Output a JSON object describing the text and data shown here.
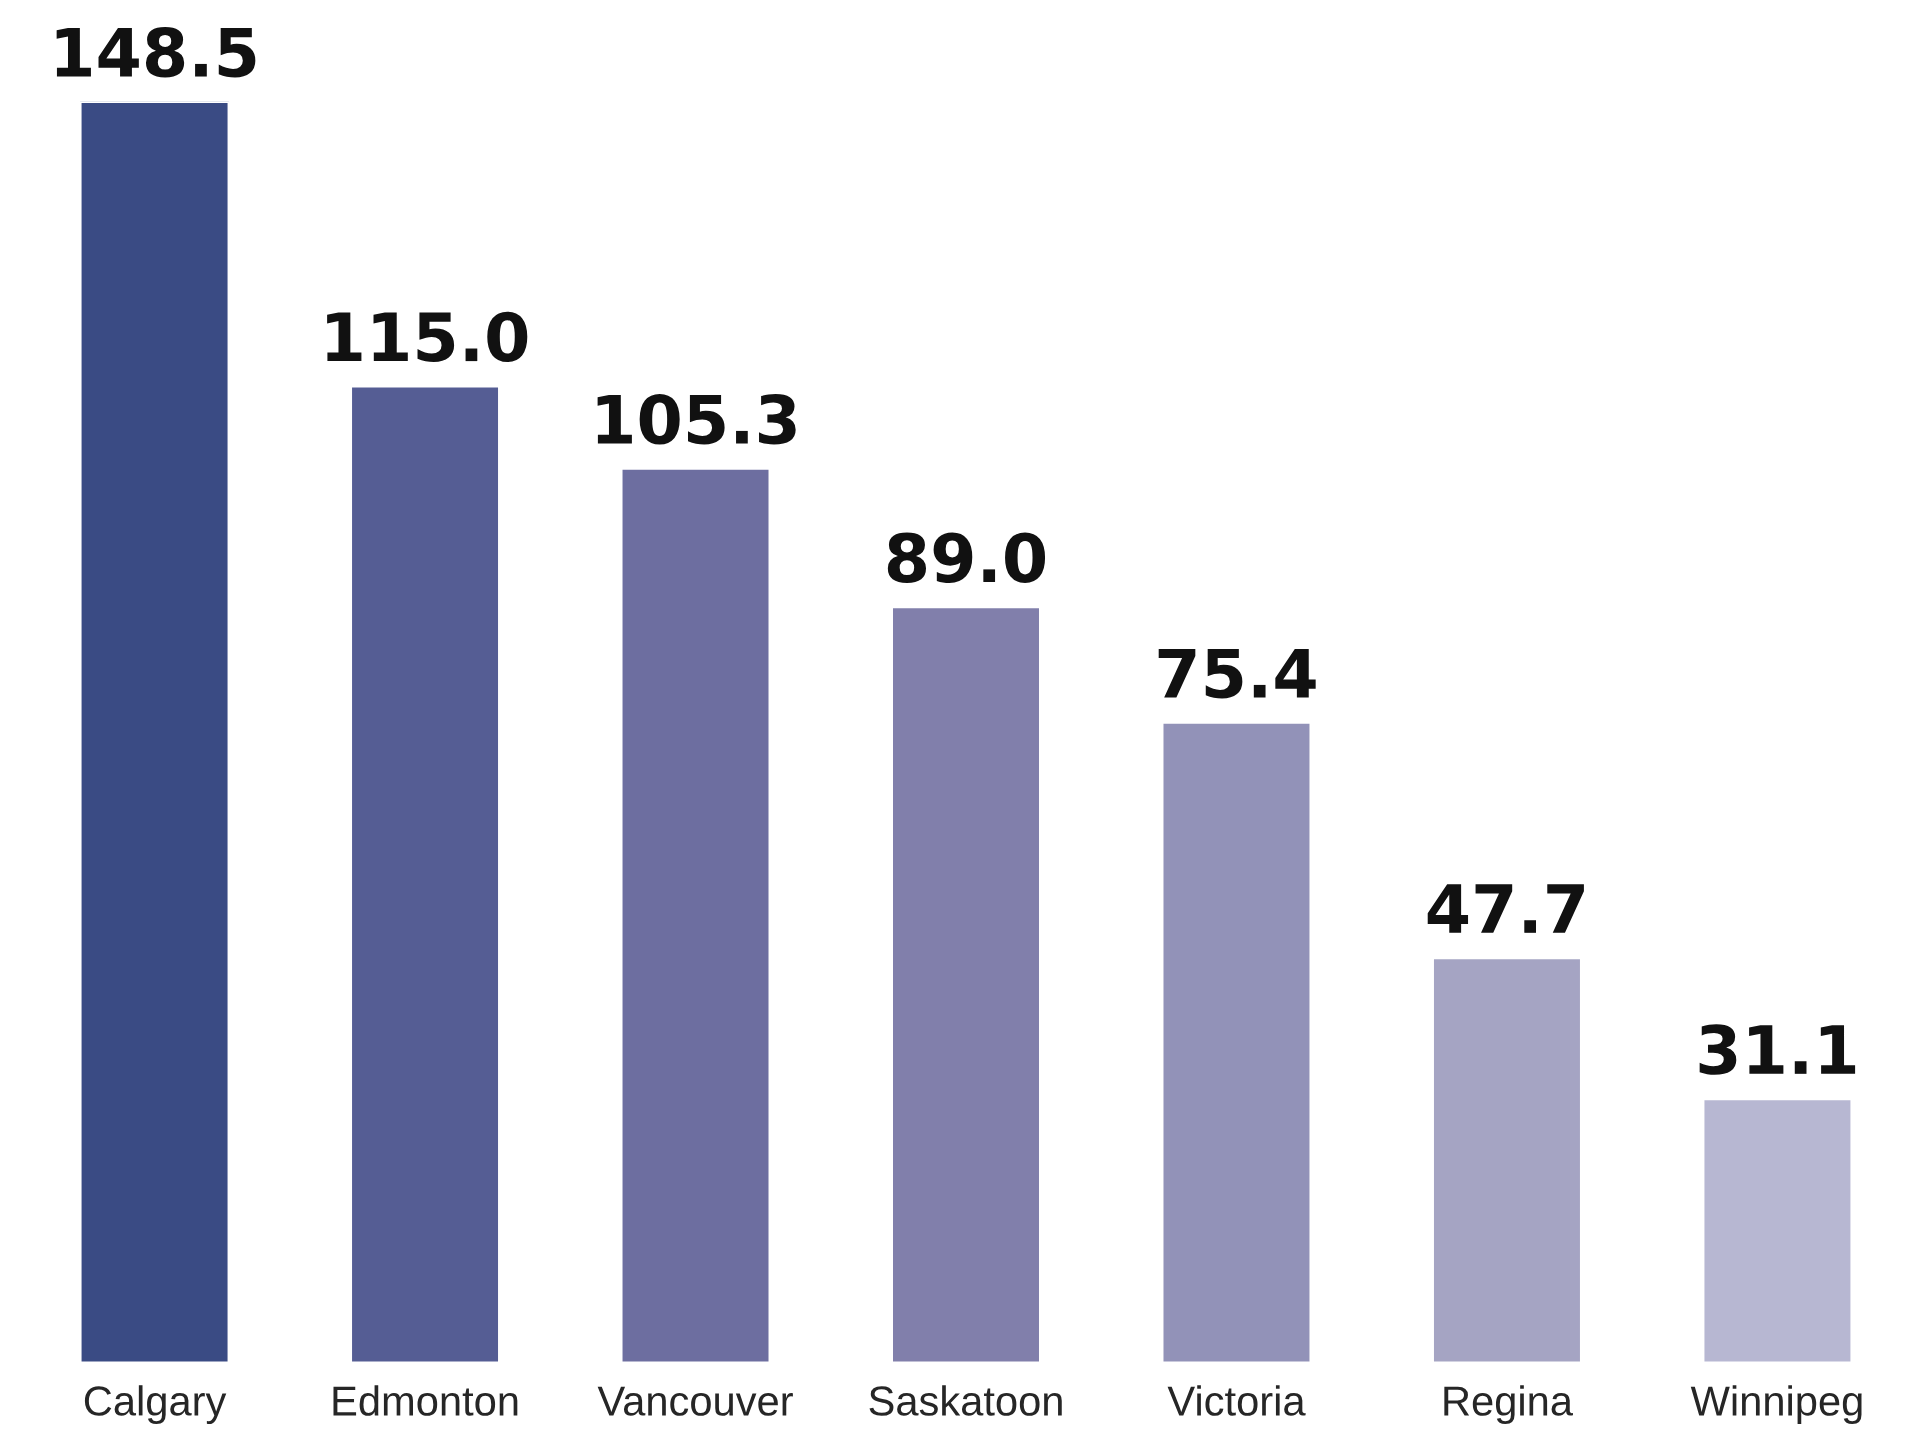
{
  "chart_data": {
    "type": "bar",
    "categories": [
      "Calgary",
      "Edmonton",
      "Vancouver",
      "Saskatoon",
      "Victoria",
      "Regina",
      "Winnipeg"
    ],
    "values": [
      148.5,
      115.0,
      105.3,
      89.0,
      75.4,
      47.7,
      31.1
    ],
    "value_labels": [
      "148.5",
      "115.0",
      "105.3",
      "89.0",
      "75.4",
      "47.7",
      "31.1"
    ],
    "colors": [
      "#2e4590",
      "#4a559e",
      "#6466a8",
      "#7a78b2",
      "#8c8cbe",
      "#a09fc8",
      "#b3b3d6"
    ],
    "grid": false,
    "legend": false
  }
}
